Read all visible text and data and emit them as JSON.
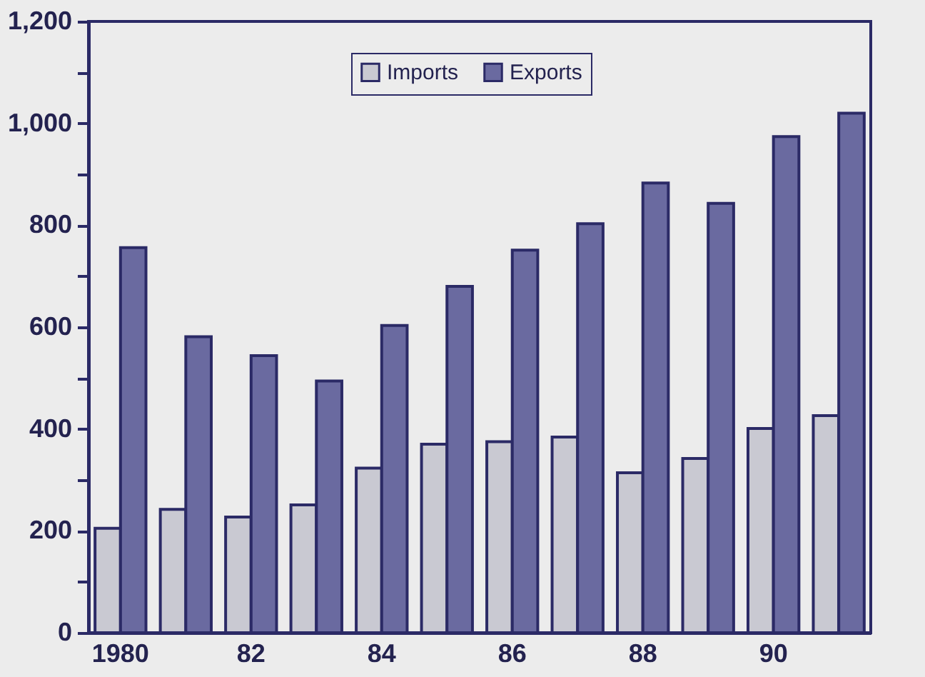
{
  "chart_data": {
    "type": "bar",
    "categories": [
      "1980",
      null,
      "82",
      null,
      "84",
      null,
      "86",
      null,
      "88",
      null,
      "90",
      null
    ],
    "series": [
      {
        "name": "Imports",
        "color": "#c9c9d2",
        "values": [
          205,
          242,
          227,
          251,
          323,
          370,
          375,
          384,
          314,
          342,
          401,
          426
        ]
      },
      {
        "name": "Exports",
        "color": "#6a6aa0",
        "values": [
          756,
          581,
          544,
          494,
          603,
          680,
          751,
          803,
          883,
          843,
          974,
          1020
        ]
      }
    ],
    "ylim": [
      0,
      1200
    ],
    "yticks": [
      0,
      {
        "value": 100,
        "label": null
      },
      200,
      {
        "value": 300,
        "label": null
      },
      400,
      {
        "value": 500,
        "label": null
      },
      600,
      {
        "value": 700,
        "label": null
      },
      800,
      {
        "value": 900,
        "label": null
      },
      {
        "value": 1000,
        "label": "1,000"
      },
      {
        "value": 1100,
        "label": null
      },
      {
        "value": 1200,
        "label": "1,200"
      }
    ],
    "grid": false,
    "legend": "top"
  }
}
